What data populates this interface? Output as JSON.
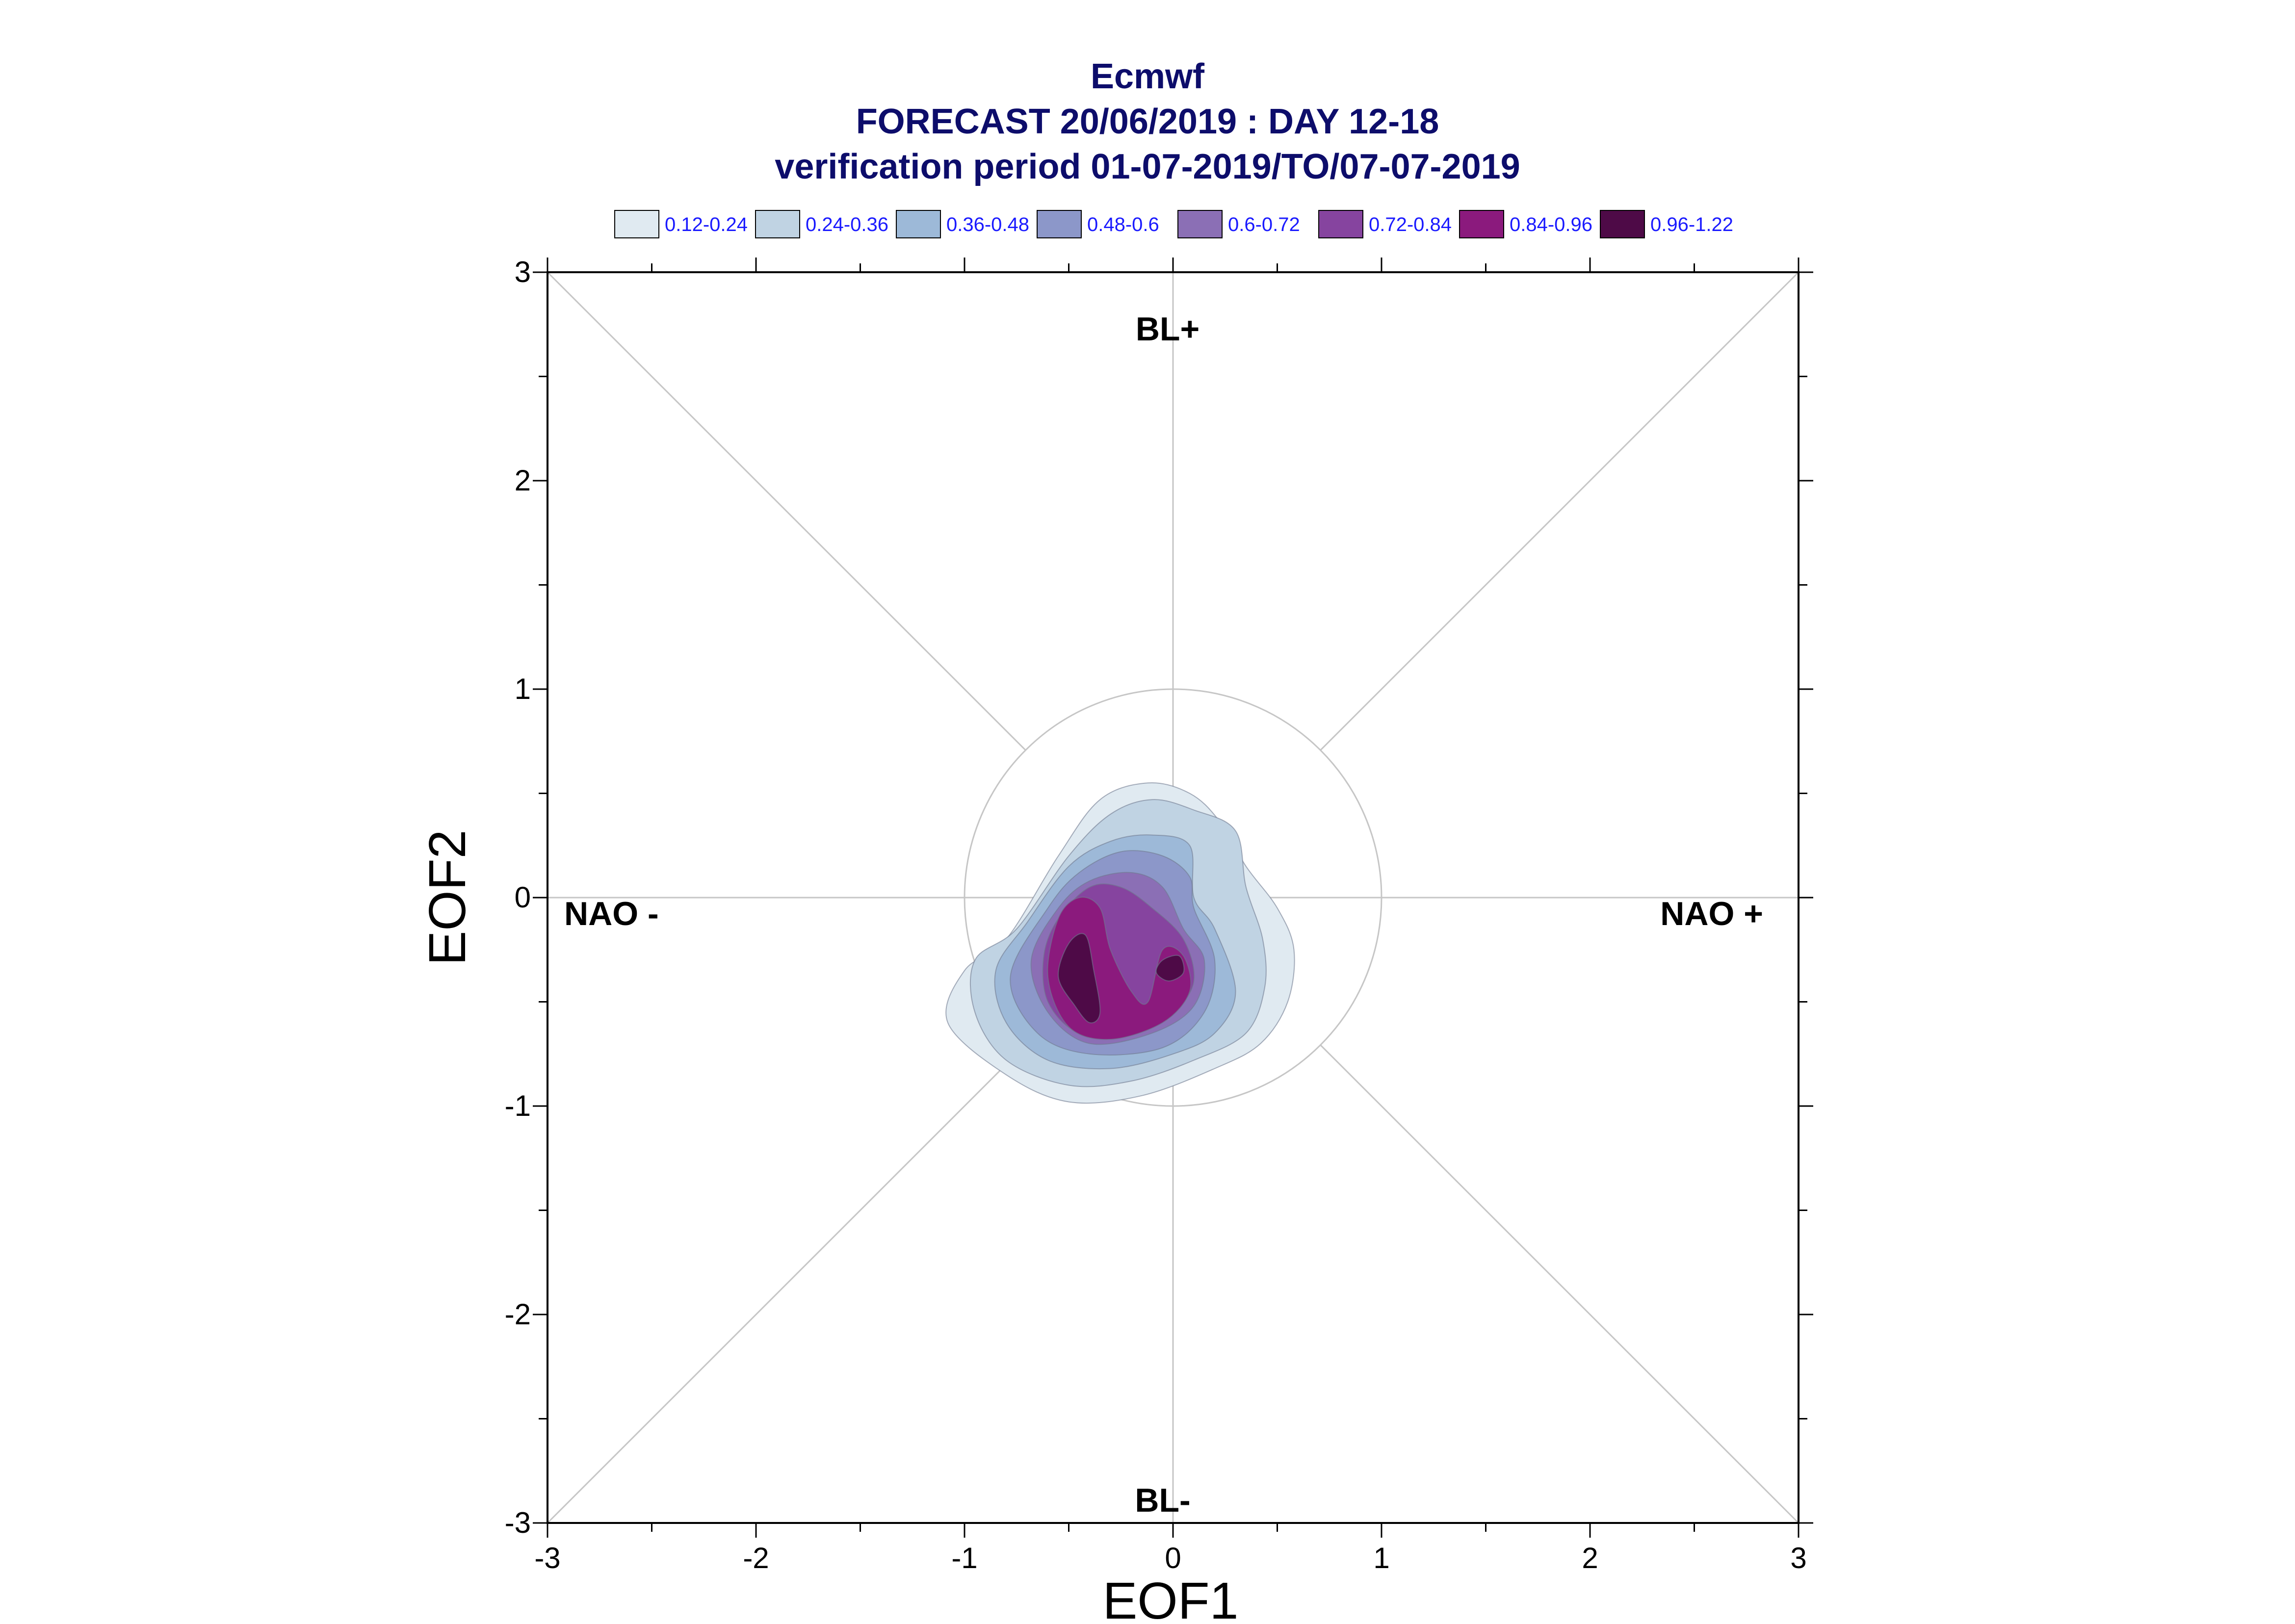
{
  "chart_data": {
    "type": "contour",
    "title": [
      "Ecmwf",
      "FORECAST 20/06/2019 : DAY 12-18",
      "verification period 01-07-2019/TO/07-07-2019"
    ],
    "xlabel": "EOF1",
    "ylabel": "EOF2",
    "xlim": [
      -3,
      3
    ],
    "ylim": [
      -3,
      3
    ],
    "xticks": [
      "-3",
      "-2",
      "-1",
      "0",
      "1",
      "2",
      "3"
    ],
    "yticks": [
      "3",
      "2",
      "1",
      "0",
      "-1",
      "-2",
      "-3"
    ],
    "unit_circle_radius": 1,
    "legend": [
      {
        "label": "0.12-0.24",
        "color": "#e0eaf1"
      },
      {
        "label": "0.24-0.36",
        "color": "#c0d3e3"
      },
      {
        "label": "0.36-0.48",
        "color": "#9db9d8"
      },
      {
        "label": "0.48-0.6",
        "color": "#8c97c9"
      },
      {
        "label": "0.6-0.72",
        "color": "#8b6fb5"
      },
      {
        "label": "0.72-0.84",
        "color": "#86449f"
      },
      {
        "label": "0.84-0.96",
        "color": "#8b1a7d"
      },
      {
        "label": "0.96-1.22",
        "color": "#4e0a47"
      }
    ],
    "regions": {
      "top": "BL+",
      "bottom": "BL-",
      "left": "NAO -",
      "right": "NAO +"
    },
    "contours": [
      {
        "level": 0,
        "points": [
          [
            -0.8,
            -0.2
          ],
          [
            -0.55,
            0.2
          ],
          [
            -0.35,
            0.47
          ],
          [
            -0.12,
            0.55
          ],
          [
            0.08,
            0.5
          ],
          [
            0.22,
            0.37
          ],
          [
            0.35,
            0.15
          ],
          [
            0.5,
            -0.05
          ],
          [
            0.58,
            -0.25
          ],
          [
            0.55,
            -0.5
          ],
          [
            0.42,
            -0.7
          ],
          [
            0.2,
            -0.82
          ],
          [
            -0.15,
            -0.95
          ],
          [
            -0.5,
            -0.98
          ],
          [
            -0.8,
            -0.85
          ],
          [
            -1.08,
            -0.6
          ],
          [
            -1.0,
            -0.35
          ]
        ]
      },
      {
        "level": 1,
        "points": [
          [
            -0.75,
            -0.15
          ],
          [
            -0.5,
            0.2
          ],
          [
            -0.3,
            0.4
          ],
          [
            -0.1,
            0.47
          ],
          [
            0.1,
            0.42
          ],
          [
            0.3,
            0.32
          ],
          [
            0.35,
            0.05
          ],
          [
            0.43,
            -0.2
          ],
          [
            0.44,
            -0.43
          ],
          [
            0.35,
            -0.65
          ],
          [
            0.1,
            -0.78
          ],
          [
            -0.2,
            -0.88
          ],
          [
            -0.5,
            -0.9
          ],
          [
            -0.8,
            -0.78
          ],
          [
            -0.95,
            -0.55
          ],
          [
            -0.95,
            -0.3
          ]
        ]
      },
      {
        "level": 2,
        "points": [
          [
            -0.7,
            -0.12
          ],
          [
            -0.5,
            0.15
          ],
          [
            -0.3,
            0.27
          ],
          [
            -0.1,
            0.3
          ],
          [
            0.08,
            0.25
          ],
          [
            0.1,
            0.0
          ],
          [
            0.2,
            -0.15
          ],
          [
            0.3,
            -0.45
          ],
          [
            0.2,
            -0.65
          ],
          [
            0.0,
            -0.75
          ],
          [
            -0.3,
            -0.82
          ],
          [
            -0.6,
            -0.78
          ],
          [
            -0.8,
            -0.6
          ],
          [
            -0.85,
            -0.35
          ]
        ]
      },
      {
        "level": 3,
        "points": [
          [
            -0.6,
            -0.05
          ],
          [
            -0.45,
            0.12
          ],
          [
            -0.25,
            0.22
          ],
          [
            -0.05,
            0.2
          ],
          [
            0.08,
            0.1
          ],
          [
            0.1,
            -0.05
          ],
          [
            0.2,
            -0.3
          ],
          [
            0.15,
            -0.55
          ],
          [
            -0.05,
            -0.72
          ],
          [
            -0.4,
            -0.75
          ],
          [
            -0.65,
            -0.65
          ],
          [
            -0.78,
            -0.38
          ]
        ]
      },
      {
        "level": 4,
        "points": [
          [
            -0.55,
            -0.05
          ],
          [
            -0.4,
            0.08
          ],
          [
            -0.2,
            0.12
          ],
          [
            -0.05,
            0.05
          ],
          [
            0.05,
            -0.15
          ],
          [
            0.15,
            -0.3
          ],
          [
            0.1,
            -0.52
          ],
          [
            -0.1,
            -0.65
          ],
          [
            -0.4,
            -0.7
          ],
          [
            -0.6,
            -0.55
          ],
          [
            -0.68,
            -0.3
          ]
        ]
      },
      {
        "level": 5,
        "points": [
          [
            -0.55,
            -0.1
          ],
          [
            -0.4,
            0.05
          ],
          [
            -0.25,
            0.05
          ],
          [
            -0.1,
            -0.05
          ],
          [
            0.05,
            -0.2
          ],
          [
            0.1,
            -0.4
          ],
          [
            0.0,
            -0.55
          ],
          [
            -0.2,
            -0.65
          ],
          [
            -0.45,
            -0.65
          ],
          [
            -0.6,
            -0.5
          ],
          [
            -0.62,
            -0.28
          ]
        ]
      },
      {
        "level": 6,
        "points": [
          [
            -0.55,
            -0.1
          ],
          [
            -0.45,
            0.0
          ],
          [
            -0.35,
            -0.05
          ],
          [
            -0.3,
            -0.25
          ],
          [
            -0.2,
            -0.45
          ],
          [
            -0.12,
            -0.5
          ],
          [
            -0.05,
            -0.25
          ],
          [
            0.05,
            -0.28
          ],
          [
            0.08,
            -0.45
          ],
          [
            -0.05,
            -0.6
          ],
          [
            -0.3,
            -0.68
          ],
          [
            -0.5,
            -0.62
          ],
          [
            -0.6,
            -0.38
          ]
        ]
      },
      {
        "level": 7,
        "points": [
          [
            -0.5,
            -0.22
          ],
          [
            -0.42,
            -0.18
          ],
          [
            -0.38,
            -0.35
          ],
          [
            -0.35,
            -0.55
          ],
          [
            -0.4,
            -0.6
          ],
          [
            -0.47,
            -0.52
          ],
          [
            -0.55,
            -0.38
          ]
        ]
      },
      {
        "level": 7,
        "points": [
          [
            -0.05,
            -0.3
          ],
          [
            0.03,
            -0.28
          ],
          [
            0.05,
            -0.36
          ],
          [
            -0.02,
            -0.4
          ],
          [
            -0.08,
            -0.36
          ]
        ]
      }
    ]
  }
}
